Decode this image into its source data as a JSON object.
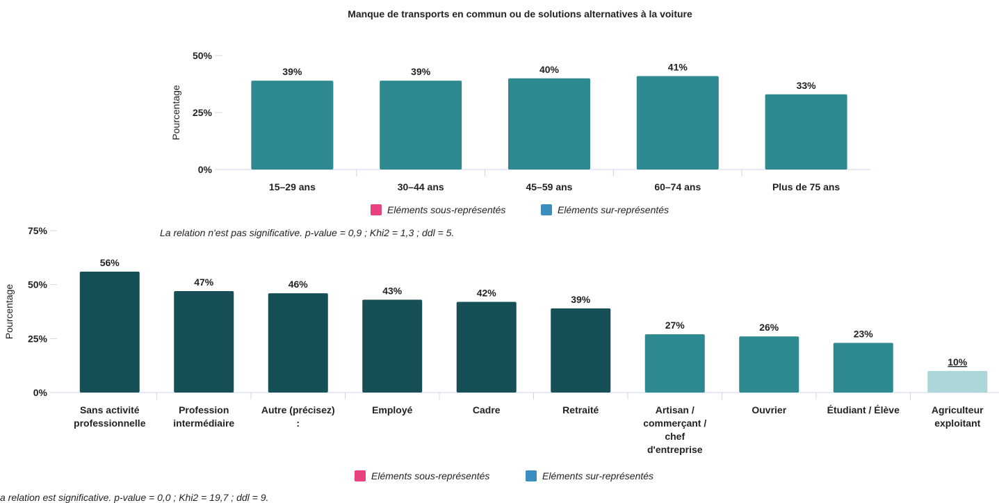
{
  "chart_data": [
    {
      "type": "bar",
      "title": "Manque de transports en commun ou de solutions alternatives à la voiture",
      "ylabel": "Pourcentage",
      "categories": [
        "15–29 ans",
        "30–44 ans",
        "45–59 ans",
        "60–74 ans",
        "Plus de 75 ans"
      ],
      "values": [
        39,
        39,
        40,
        41,
        33
      ],
      "value_labels": [
        "39%",
        "39%",
        "40%",
        "41%",
        "33%"
      ],
      "colors": [
        "#2e8a90",
        "#2e8a90",
        "#2e8a90",
        "#2e8a90",
        "#2e8a90"
      ],
      "label_colors": [
        "#111111",
        "#111111",
        "#111111",
        "#111111",
        "#111111"
      ],
      "ylim": [
        0,
        50
      ],
      "yticks": [
        {
          "value": 0,
          "label": "0%"
        },
        {
          "value": 25,
          "label": "25%"
        },
        {
          "value": 50,
          "label": "50%"
        }
      ],
      "legend": [
        {
          "label": "Eléments sous-représentés",
          "color": "#e8417f"
        },
        {
          "label": "Eléments sur-représentés",
          "color": "#3a8dbf"
        }
      ],
      "note": "La relation n'est pas significative. p-value = 0,9 ; Khi2 = 1,3 ; ddl = 5."
    },
    {
      "type": "bar",
      "ylabel": "Pourcentage",
      "categories": [
        "Sans activité\nprofessionnelle",
        "Profession\nintermédiaire",
        "Autre (précisez)\n:",
        "Employé",
        "Cadre",
        "Retraité",
        "Artisan /\ncommerçant /\nchef\nd'entreprise",
        "Ouvrier",
        "Étudiant / Élève",
        "Agriculteur\nexploitant"
      ],
      "values": [
        56,
        47,
        46,
        43,
        42,
        39,
        27,
        26,
        23,
        10
      ],
      "value_labels": [
        "56%",
        "47%",
        "46%",
        "43%",
        "42%",
        "39%",
        "27%",
        "26%",
        "23%",
        "10%"
      ],
      "colors": [
        "#164f55",
        "#164f55",
        "#164f55",
        "#164f55",
        "#164f55",
        "#164f55",
        "#2e8a90",
        "#2e8a90",
        "#2e8a90",
        "#acd6d8"
      ],
      "label_colors": [
        "#111111",
        "#111111",
        "#111111",
        "#111111",
        "#111111",
        "#111111",
        "#111111",
        "#111111",
        "#111111",
        "#e8417f"
      ],
      "ylim": [
        0,
        75
      ],
      "yticks": [
        {
          "value": 0,
          "label": "0%"
        },
        {
          "value": 25,
          "label": "25%"
        },
        {
          "value": 50,
          "label": "50%"
        },
        {
          "value": 75,
          "label": "75%"
        }
      ],
      "legend": [
        {
          "label": "Eléments sous-représentés",
          "color": "#e8417f"
        },
        {
          "label": "Eléments sur-représentés",
          "color": "#3a8dbf"
        }
      ],
      "note": "a relation est significative. p-value = 0,0 ; Khi2 = 19,7 ; ddl = 9."
    }
  ]
}
